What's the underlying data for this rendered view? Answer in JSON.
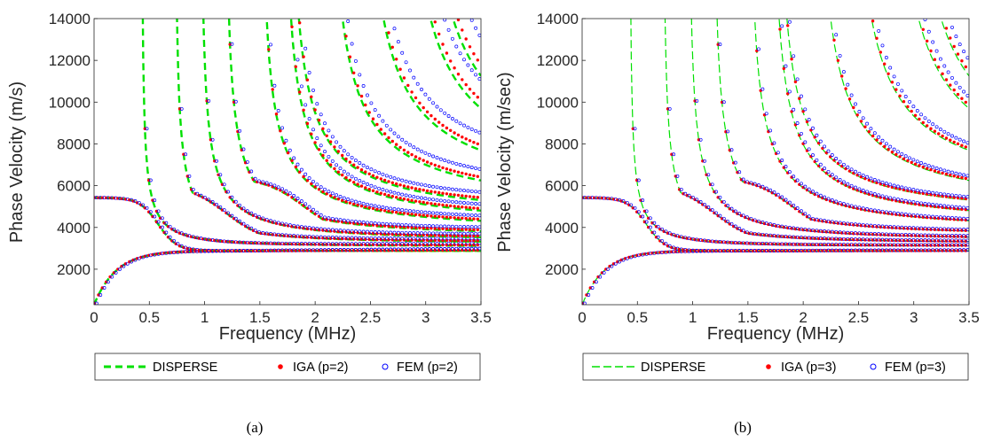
{
  "chart_data": [
    {
      "type": "scatter",
      "caption": "(a)",
      "xlabel": "Frequency (MHz)",
      "ylabel": "Phase Velocity (m/s)",
      "xlim": [
        0,
        3.5
      ],
      "ylim": [
        300,
        14000
      ],
      "xticks": [
        "0",
        "0.5",
        "1",
        "1.5",
        "2",
        "2.5",
        "3",
        "3.5"
      ],
      "yticks": [
        "2000",
        "4000",
        "6000",
        "8000",
        "10000",
        "12000",
        "14000"
      ],
      "grid": false,
      "legend_position": "bottom-center",
      "legend": [
        {
          "label": "DISPERSE",
          "marker": "dashed-line",
          "color": "#00e000"
        },
        {
          "label": "IGA (p=2)",
          "marker": "filled-dot",
          "color": "#ff0000"
        },
        {
          "label": "FEM (p=2)",
          "marker": "open-circle",
          "color": "#0000ff"
        }
      ],
      "modes": [
        {
          "type": "flexural",
          "c_low": 300,
          "c_inf": 2880,
          "k": 5.0
        },
        {
          "type": "extensional",
          "c0": 5430,
          "c_inf": 2880,
          "f_drop": 0.58,
          "w": 0.085
        },
        {
          "type": "cutoff",
          "fc": 0.43,
          "c_inf": 3100
        },
        {
          "type": "cutoff",
          "fc": 0.73,
          "c_inf": 3250,
          "plateau": 6100,
          "f_plateau": 1.2
        },
        {
          "type": "cutoff",
          "fc": 0.96,
          "c_inf": 3400
        },
        {
          "type": "cutoff",
          "fc": 1.18,
          "c_inf": 3600,
          "plateau": 6400,
          "f_plateau": 1.9
        },
        {
          "type": "cutoff",
          "fc": 1.5,
          "c_inf": 3900
        },
        {
          "type": "cutoff",
          "fc": 1.7,
          "c_inf": 4200,
          "plateau": 6600,
          "f_plateau": 2.5
        },
        {
          "type": "cutoff",
          "fc": 1.75,
          "c_inf": 4600
        },
        {
          "type": "cutoff",
          "fc": 2.1,
          "c_inf": 5000
        },
        {
          "type": "cutoff",
          "fc": 2.4,
          "c_inf": 5600
        },
        {
          "type": "cutoff",
          "fc": 2.75,
          "c_inf": 6000
        },
        {
          "type": "cutoff",
          "fc": 2.9,
          "c_inf": 6300
        },
        {
          "type": "cutoff",
          "fc": 3.2,
          "c_inf": 6500
        },
        {
          "type": "cutoff",
          "fc": 3.4,
          "c_inf": 6700
        }
      ]
    },
    {
      "type": "scatter",
      "caption": "(b)",
      "xlabel": "Frequency (MHz)",
      "ylabel": "Phase Velocity (m/sec)",
      "xlim": [
        0,
        3.5
      ],
      "ylim": [
        300,
        14000
      ],
      "xticks": [
        "0",
        "0.5",
        "1",
        "1.5",
        "2",
        "2.5",
        "3",
        "3.5"
      ],
      "yticks": [
        "2000",
        "4000",
        "6000",
        "8000",
        "10000",
        "12000",
        "14000"
      ],
      "grid": false,
      "legend_position": "bottom-center",
      "legend": [
        {
          "label": "DISPERSE",
          "marker": "dashed-line",
          "color": "#00e000"
        },
        {
          "label": "IGA (p=3)",
          "marker": "filled-dot",
          "color": "#ff0000"
        },
        {
          "label": "FEM (p=3)",
          "marker": "open-circle",
          "color": "#0000ff"
        }
      ],
      "modes": [
        {
          "type": "flexural",
          "c_low": 300,
          "c_inf": 2880,
          "k": 5.0
        },
        {
          "type": "extensional",
          "c0": 5430,
          "c_inf": 2880,
          "f_drop": 0.58,
          "w": 0.085
        },
        {
          "type": "cutoff",
          "fc": 0.43,
          "c_inf": 3100
        },
        {
          "type": "cutoff",
          "fc": 0.73,
          "c_inf": 3250,
          "plateau": 6100,
          "f_plateau": 1.2
        },
        {
          "type": "cutoff",
          "fc": 0.96,
          "c_inf": 3400
        },
        {
          "type": "cutoff",
          "fc": 1.18,
          "c_inf": 3600,
          "plateau": 6400,
          "f_plateau": 1.9
        },
        {
          "type": "cutoff",
          "fc": 1.5,
          "c_inf": 3900
        },
        {
          "type": "cutoff",
          "fc": 1.7,
          "c_inf": 4200,
          "plateau": 6600,
          "f_plateau": 2.5
        },
        {
          "type": "cutoff",
          "fc": 1.75,
          "c_inf": 4600
        },
        {
          "type": "cutoff",
          "fc": 2.1,
          "c_inf": 5000
        },
        {
          "type": "cutoff",
          "fc": 2.4,
          "c_inf": 5600
        },
        {
          "type": "cutoff",
          "fc": 2.75,
          "c_inf": 6000
        },
        {
          "type": "cutoff",
          "fc": 2.9,
          "c_inf": 6300
        },
        {
          "type": "cutoff",
          "fc": 3.2,
          "c_inf": 6500
        },
        {
          "type": "cutoff",
          "fc": 3.4,
          "c_inf": 6700
        }
      ]
    }
  ]
}
